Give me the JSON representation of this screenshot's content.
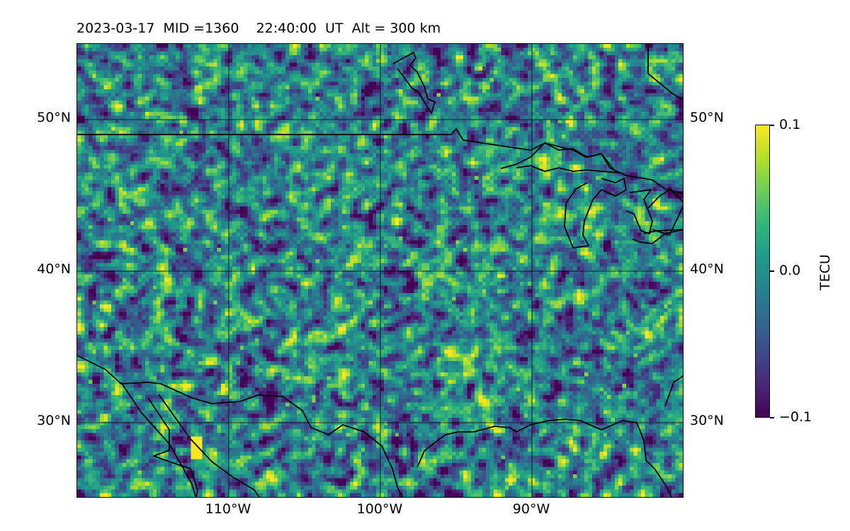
{
  "title": "2023-03-17  MID =1360    22:40:00  UT  Alt = 300 km",
  "map": {
    "lat_ticks": [
      "50°N",
      "40°N",
      "30°N"
    ],
    "lon_ticks": [
      "110°W",
      "100°W",
      "90°W"
    ],
    "extent": {
      "lon_min": -120,
      "lon_max": -80,
      "lat_min": 25,
      "lat_max": 55
    },
    "lat_values": [
      50,
      40,
      30
    ],
    "lon_values": [
      -110,
      -100,
      -90
    ],
    "colormap": "viridis",
    "coastline_color": "#000000",
    "gridline_color": "#000000"
  },
  "colorbar": {
    "label": "TECU",
    "ticks": [
      "0.1",
      "0.0",
      "−0.1"
    ],
    "min": -0.1,
    "max": 0.1
  }
}
